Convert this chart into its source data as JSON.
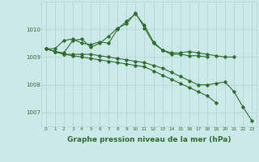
{
  "x": [
    0,
    1,
    2,
    3,
    4,
    5,
    6,
    7,
    8,
    9,
    10,
    11,
    12,
    13,
    14,
    15,
    16,
    17,
    18,
    19,
    20,
    21,
    22,
    23
  ],
  "lines": [
    [
      1009.3,
      1009.3,
      1009.6,
      1009.65,
      1009.5,
      1009.45,
      1009.55,
      1009.5,
      1010.0,
      1010.3,
      1010.55,
      1010.15,
      1009.55,
      1009.25,
      1009.15,
      1009.15,
      1009.2,
      1009.15,
      1009.1,
      1009.05,
      1009.0,
      1009.0,
      null,
      null
    ],
    [
      1009.3,
      1009.2,
      1009.15,
      1009.6,
      1009.65,
      1009.35,
      1009.5,
      1009.75,
      1010.05,
      1010.2,
      1010.6,
      1010.05,
      1009.5,
      1009.25,
      1009.1,
      1009.1,
      1009.05,
      1009.05,
      1009.0,
      null,
      null,
      null,
      null,
      null
    ],
    [
      1009.3,
      1009.2,
      1009.1,
      1009.1,
      1009.1,
      1009.1,
      1009.05,
      1009.0,
      1008.95,
      1008.9,
      1008.85,
      1008.8,
      1008.7,
      1008.6,
      1008.45,
      1008.3,
      1008.15,
      1008.0,
      1008.0,
      1008.05,
      1008.1,
      1007.75,
      1007.2,
      1006.7
    ],
    [
      1009.3,
      1009.2,
      1009.1,
      1009.05,
      1009.0,
      1008.95,
      1008.9,
      1008.85,
      1008.8,
      1008.75,
      1008.7,
      1008.65,
      1008.5,
      1008.35,
      1008.2,
      1008.05,
      1007.9,
      1007.75,
      1007.6,
      1007.35,
      null,
      null,
      null,
      null
    ]
  ],
  "line_color": "#2d6e2d",
  "bg_color": "#cce8e8",
  "grid_color": "#b0d8d8",
  "xlabel": "Graphe pression niveau de la mer (hPa)",
  "xlabel_fontsize": 6.5,
  "yticks": [
    1007,
    1008,
    1009,
    1010
  ],
  "xticks": [
    0,
    1,
    2,
    3,
    4,
    5,
    6,
    7,
    8,
    9,
    10,
    11,
    12,
    13,
    14,
    15,
    16,
    17,
    18,
    19,
    20,
    21,
    22,
    23
  ],
  "ylim": [
    1006.5,
    1011.0
  ],
  "xlim": [
    -0.5,
    23.5
  ],
  "marker": "D",
  "marker_size": 1.8,
  "linewidth": 0.8
}
